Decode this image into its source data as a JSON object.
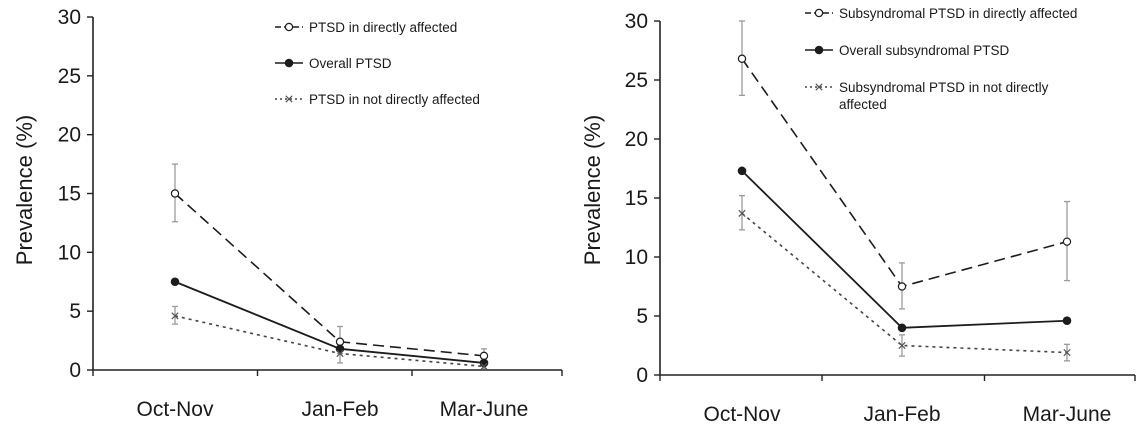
{
  "chart_data": [
    {
      "type": "line",
      "ylabel": "Prevalence (%)",
      "xlabel": "",
      "categories": [
        "Oct-Nov",
        "Jan-Feb",
        "Mar-June"
      ],
      "ylim": [
        0,
        30
      ],
      "yticks": [
        0,
        5,
        10,
        15,
        20,
        25,
        30
      ],
      "grid": false,
      "legend_position": "top-right",
      "series": [
        {
          "name": "PTSD in directly affected",
          "style": "dashed",
          "marker": "open-circle",
          "values": [
            15.0,
            2.4,
            1.2
          ],
          "err_low": [
            12.6,
            1.4,
            0.6
          ],
          "err_high": [
            17.5,
            3.7,
            1.8
          ]
        },
        {
          "name": "Overall PTSD",
          "style": "solid",
          "marker": "filled-circle",
          "values": [
            7.5,
            1.8,
            0.6
          ],
          "err_low": null,
          "err_high": null
        },
        {
          "name": "PTSD in not directly affected",
          "style": "dotted",
          "marker": "cross",
          "values": [
            4.6,
            1.4,
            0.3
          ],
          "err_low": [
            3.9,
            0.6,
            0.1
          ],
          "err_high": [
            5.4,
            2.2,
            0.6
          ]
        }
      ]
    },
    {
      "type": "line",
      "ylabel": "Prevalence (%)",
      "xlabel": "",
      "categories": [
        "Oct-Nov",
        "Jan-Feb",
        "Mar-June"
      ],
      "ylim": [
        0,
        30
      ],
      "yticks": [
        0,
        5,
        10,
        15,
        20,
        25,
        30
      ],
      "grid": false,
      "legend_position": "top-right",
      "series": [
        {
          "name": "Subsyndromal PTSD in directly affected",
          "style": "dashed",
          "marker": "open-circle",
          "values": [
            26.8,
            7.5,
            11.3
          ],
          "err_low": [
            23.7,
            5.6,
            8.0
          ],
          "err_high": [
            30.0,
            9.5,
            14.7
          ]
        },
        {
          "name": "Overall subsyndromal PTSD",
          "style": "solid",
          "marker": "filled-circle",
          "values": [
            17.3,
            4.0,
            4.6
          ],
          "err_low": null,
          "err_high": null
        },
        {
          "name": "Subsyndromal PTSD in not directly\naffected",
          "style": "dotted",
          "marker": "cross",
          "values": [
            13.7,
            2.5,
            1.9
          ],
          "err_low": [
            12.3,
            1.6,
            1.2
          ],
          "err_high": [
            15.2,
            3.4,
            2.6
          ]
        }
      ]
    }
  ],
  "colors": {
    "line": "#1c1c1c",
    "errorbar": "#9a9a9a",
    "axis": "#222222"
  }
}
